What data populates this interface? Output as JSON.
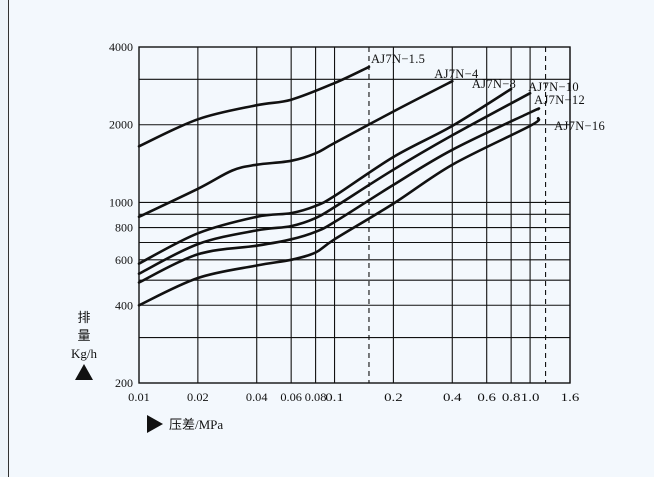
{
  "chart_data": {
    "type": "line",
    "x_scale": "log",
    "y_scale": "log",
    "xlim": [
      0.01,
      1.6
    ],
    "ylim": [
      200,
      4000
    ],
    "x_ticks": [
      {
        "v": 0.01,
        "label": "0.01"
      },
      {
        "v": 0.02,
        "label": "0.02"
      },
      {
        "v": 0.04,
        "label": "0.04"
      },
      {
        "v": 0.06,
        "label": "0.06"
      },
      {
        "v": 0.08,
        "label": "0.08"
      },
      {
        "v": 0.1,
        "label": "0.1"
      },
      {
        "v": 0.2,
        "label": "0.2"
      },
      {
        "v": 0.4,
        "label": "0.4"
      },
      {
        "v": 0.6,
        "label": "0.6"
      },
      {
        "v": 0.8,
        "label": "0.8"
      },
      {
        "v": 1.0,
        "label": "1.0"
      },
      {
        "v": 1.6,
        "label": "1.6"
      }
    ],
    "y_ticks": [
      {
        "v": 200,
        "label": "200"
      },
      {
        "v": 400,
        "label": "400"
      },
      {
        "v": 600,
        "label": "600"
      },
      {
        "v": 800,
        "label": "800"
      },
      {
        "v": 1000,
        "label": "1000"
      },
      {
        "v": 2000,
        "label": "2000"
      },
      {
        "v": 4000,
        "label": "4000"
      }
    ],
    "x_grid": [
      0.02,
      0.04,
      0.06,
      0.08,
      0.1,
      0.2,
      0.4,
      0.6,
      0.8,
      1.0,
      1.6
    ],
    "y_grid": [
      300,
      400,
      500,
      600,
      700,
      800,
      900,
      1000,
      2000,
      3000,
      4000
    ],
    "dashed_x": [
      0.15,
      1.2
    ],
    "ylabel": [
      "排",
      "量",
      "Kg/h"
    ],
    "xlabel": "压差/MPa",
    "series": [
      {
        "name": "AJ7N−1.5",
        "points": [
          [
            0.01,
            1650
          ],
          [
            0.02,
            2100
          ],
          [
            0.04,
            2380
          ],
          [
            0.06,
            2500
          ],
          [
            0.1,
            2900
          ],
          [
            0.15,
            3350
          ]
        ]
      },
      {
        "name": "AJ7N−4",
        "points": [
          [
            0.01,
            880
          ],
          [
            0.02,
            1130
          ],
          [
            0.03,
            1330
          ],
          [
            0.04,
            1400
          ],
          [
            0.06,
            1450
          ],
          [
            0.08,
            1550
          ],
          [
            0.1,
            1700
          ],
          [
            0.2,
            2250
          ],
          [
            0.4,
            2950
          ]
        ]
      },
      {
        "name": "AJ7N−8",
        "points": [
          [
            0.01,
            580
          ],
          [
            0.02,
            760
          ],
          [
            0.04,
            880
          ],
          [
            0.06,
            910
          ],
          [
            0.08,
            970
          ],
          [
            0.1,
            1060
          ],
          [
            0.2,
            1500
          ],
          [
            0.4,
            1980
          ],
          [
            0.8,
            2750
          ]
        ]
      },
      {
        "name": "AJ7N−10",
        "points": [
          [
            0.01,
            530
          ],
          [
            0.02,
            690
          ],
          [
            0.04,
            780
          ],
          [
            0.06,
            810
          ],
          [
            0.08,
            870
          ],
          [
            0.1,
            960
          ],
          [
            0.2,
            1340
          ],
          [
            0.4,
            1820
          ],
          [
            1.0,
            2650
          ]
        ]
      },
      {
        "name": "AJ7N−12",
        "points": [
          [
            0.01,
            490
          ],
          [
            0.02,
            630
          ],
          [
            0.04,
            680
          ],
          [
            0.06,
            720
          ],
          [
            0.08,
            770
          ],
          [
            0.1,
            840
          ],
          [
            0.2,
            1170
          ],
          [
            0.4,
            1600
          ],
          [
            1.0,
            2230
          ],
          [
            1.1,
            2300
          ]
        ]
      },
      {
        "name": "AJ7N−16",
        "points": [
          [
            0.01,
            400
          ],
          [
            0.02,
            510
          ],
          [
            0.04,
            570
          ],
          [
            0.06,
            600
          ],
          [
            0.08,
            640
          ],
          [
            0.1,
            720
          ],
          [
            0.2,
            990
          ],
          [
            0.4,
            1400
          ],
          [
            1.0,
            1980
          ],
          [
            1.1,
            2120
          ]
        ]
      }
    ]
  }
}
